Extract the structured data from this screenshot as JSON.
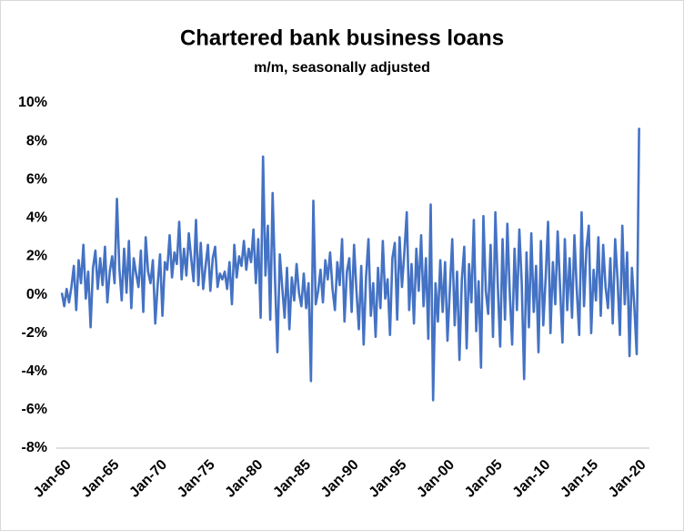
{
  "chart_data": {
    "type": "line",
    "title": "Chartered bank business loans",
    "subtitle": "m/m, seasonally adjusted",
    "color": "#4472c4",
    "ylim": [
      -8,
      10
    ],
    "yticks": [
      {
        "value": -8,
        "label": "-8%"
      },
      {
        "value": -6,
        "label": "-6%"
      },
      {
        "value": -4,
        "label": "-4%"
      },
      {
        "value": -2,
        "label": "-2%"
      },
      {
        "value": 0,
        "label": "0%"
      },
      {
        "value": 2,
        "label": "2%"
      },
      {
        "value": 4,
        "label": "4%"
      },
      {
        "value": 6,
        "label": "6%"
      },
      {
        "value": 8,
        "label": "8%"
      },
      {
        "value": 10,
        "label": "10%"
      }
    ],
    "grid": false,
    "categories": [
      "Jan-60",
      null,
      null,
      null,
      null,
      null,
      null,
      null,
      null,
      null,
      null,
      null,
      null,
      null,
      null,
      null,
      null,
      null,
      null,
      null,
      "Jan-65",
      null,
      null,
      null,
      null,
      null,
      null,
      null,
      null,
      null,
      null,
      null,
      null,
      null,
      null,
      null,
      null,
      null,
      null,
      null,
      "Jan-70",
      null,
      null,
      null,
      null,
      null,
      null,
      null,
      null,
      null,
      null,
      null,
      null,
      null,
      null,
      null,
      null,
      null,
      null,
      null,
      "Jan-75",
      null,
      null,
      null,
      null,
      null,
      null,
      null,
      null,
      null,
      null,
      null,
      null,
      null,
      null,
      null,
      null,
      null,
      null,
      null,
      "Jan-80",
      null,
      null,
      null,
      null,
      null,
      null,
      null,
      null,
      null,
      null,
      null,
      null,
      null,
      null,
      null,
      null,
      null,
      null,
      null,
      "Jan-85",
      null,
      null,
      null,
      null,
      null,
      null,
      null,
      null,
      null,
      null,
      null,
      null,
      null,
      null,
      null,
      null,
      null,
      null,
      null,
      "Jan-90",
      null,
      null,
      null,
      null,
      null,
      null,
      null,
      null,
      null,
      null,
      null,
      null,
      null,
      null,
      null,
      null,
      null,
      null,
      null,
      "Jan-95",
      null,
      null,
      null,
      null,
      null,
      null,
      null,
      null,
      null,
      null,
      null,
      null,
      null,
      null,
      null,
      null,
      null,
      null,
      null,
      "Jan-00",
      null,
      null,
      null,
      null,
      null,
      null,
      null,
      null,
      null,
      null,
      null,
      null,
      null,
      null,
      null,
      null,
      null,
      null,
      null,
      "Jan-05",
      null,
      null,
      null,
      null,
      null,
      null,
      null,
      null,
      null,
      null,
      null,
      null,
      null,
      null,
      null,
      null,
      null,
      null,
      null,
      "Jan-10",
      null,
      null,
      null,
      null,
      null,
      null,
      null,
      null,
      null,
      null,
      null,
      null,
      null,
      null,
      null,
      null,
      null,
      null,
      null,
      "Jan-15",
      null,
      null,
      null,
      null,
      null,
      null,
      null,
      null,
      null,
      null,
      null,
      null,
      null,
      null,
      null,
      null,
      null,
      null,
      null,
      "Jan-20",
      null
    ],
    "values": [
      0.1,
      -0.6,
      0.3,
      -0.4,
      0.4,
      1.5,
      -0.8,
      1.8,
      0.6,
      2.6,
      -0.2,
      1.2,
      -1.7,
      1.4,
      2.3,
      0.3,
      1.9,
      0.5,
      2.5,
      -0.4,
      1.2,
      2.0,
      0.6,
      5.0,
      1.4,
      -0.3,
      2.4,
      0.1,
      2.8,
      -0.7,
      1.9,
      1.1,
      0.4,
      2.3,
      -0.9,
      3.0,
      1.2,
      0.6,
      1.8,
      -1.5,
      0.5,
      2.1,
      -1.1,
      1.7,
      1.3,
      3.1,
      0.9,
      2.2,
      1.6,
      3.8,
      0.8,
      2.4,
      1.0,
      3.2,
      1.9,
      0.7,
      3.9,
      0.5,
      2.7,
      0.3,
      1.5,
      2.6,
      0.2,
      1.9,
      2.5,
      0.4,
      1.1,
      0.8,
      1.2,
      0.3,
      1.7,
      -0.5,
      2.6,
      0.9,
      2.0,
      1.5,
      2.8,
      1.3,
      2.4,
      1.7,
      3.4,
      0.6,
      2.9,
      -1.2,
      7.2,
      1.0,
      3.6,
      -1.3,
      5.3,
      0.8,
      -3.0,
      2.1,
      0.4,
      -1.2,
      1.4,
      -1.8,
      0.9,
      -0.3,
      1.6,
      0.1,
      -0.6,
      1.1,
      -0.7,
      0.6,
      -4.5,
      4.9,
      -0.5,
      0.2,
      1.3,
      -0.4,
      1.8,
      0.8,
      2.2,
      0.3,
      -0.8,
      1.7,
      0.5,
      2.9,
      -1.4,
      1.2,
      1.9,
      -0.9,
      2.6,
      0.2,
      -1.8,
      1.5,
      -2.6,
      0.9,
      2.9,
      -1.1,
      0.6,
      -2.2,
      1.4,
      -0.7,
      2.8,
      -0.2,
      0.8,
      -2.1,
      1.9,
      2.7,
      -1.3,
      3.0,
      0.4,
      2.2,
      4.3,
      -0.8,
      1.6,
      -1.5,
      2.4,
      0.2,
      3.1,
      -0.6,
      1.9,
      -2.3,
      4.7,
      -5.5,
      0.6,
      -1.4,
      1.8,
      -0.9,
      1.7,
      -2.4,
      0.3,
      2.9,
      -1.6,
      1.2,
      -3.4,
      0.8,
      2.5,
      -2.8,
      1.6,
      -0.4,
      3.9,
      -1.9,
      0.7,
      -3.8,
      4.1,
      0.2,
      -1.0,
      2.6,
      -2.2,
      4.3,
      0.5,
      -2.7,
      2.9,
      -1.3,
      3.7,
      0.1,
      -2.6,
      2.4,
      -0.8,
      3.4,
      0.6,
      -4.4,
      2.2,
      -1.7,
      3.2,
      -0.9,
      1.5,
      -3.0,
      2.8,
      -1.6,
      0.9,
      3.8,
      -2.0,
      1.7,
      -0.5,
      3.3,
      0.4,
      -2.5,
      2.9,
      -0.8,
      1.9,
      -1.2,
      3.1,
      0.2,
      -2.1,
      4.3,
      -0.6,
      2.4,
      3.6,
      -2.0,
      1.3,
      -0.3,
      3.0,
      -1.1,
      2.6,
      0.4,
      -0.7,
      1.9,
      -1.5,
      2.9,
      0.8,
      -2.1,
      3.6,
      -0.5,
      2.2,
      -3.2,
      1.4,
      -0.6,
      -3.1,
      8.7
    ]
  }
}
